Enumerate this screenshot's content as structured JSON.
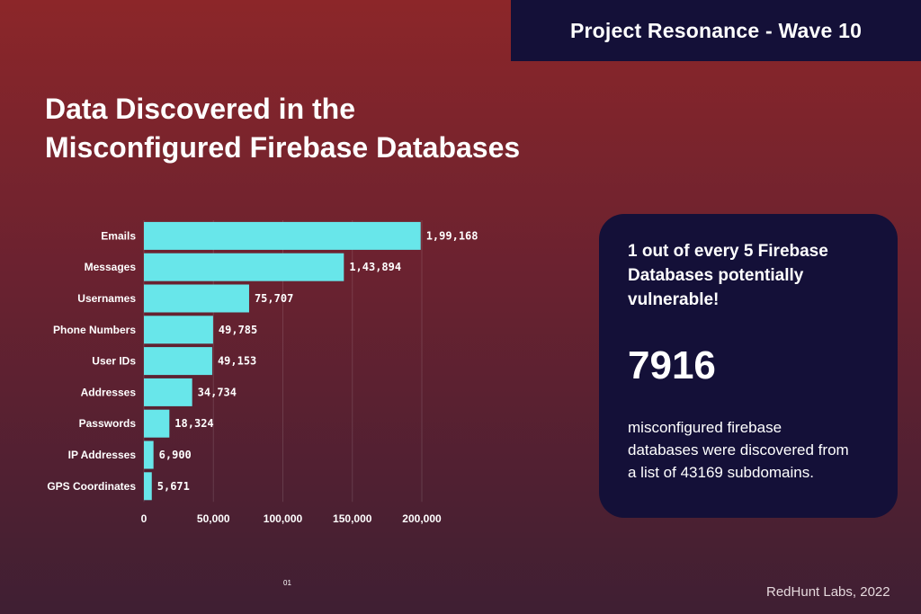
{
  "header": {
    "project_label": "Project Resonance - Wave 10"
  },
  "page": {
    "title_line1": "Data Discovered in the",
    "title_line2": "Misconfigured Firebase Databases",
    "page_number": "01",
    "credit": "RedHunt Labs, 2022"
  },
  "info_card": {
    "headline": "1 out of every 5 Firebase Databases potentially vulnerable!",
    "big_number": "7916",
    "description": "misconfigured firebase databases were discovered from a list of 43169 subdomains."
  },
  "colors": {
    "bar": "#68e6ea",
    "card_bg": "#141038",
    "background_top": "#8c2629",
    "background_bottom": "#3f1f33"
  },
  "chart_data": {
    "type": "bar",
    "orientation": "horizontal",
    "categories": [
      "Emails",
      "Messages",
      "Usernames",
      "Phone Numbers",
      "User IDs",
      "Addresses",
      "Passwords",
      "IP Addresses",
      "GPS Coordinates"
    ],
    "values": [
      199168,
      143894,
      75707,
      49785,
      49153,
      34734,
      18324,
      6900,
      5671
    ],
    "value_labels": [
      "1,99,168",
      "1,43,894",
      "75,707",
      "49,785",
      "49,153",
      "34,734",
      "18,324",
      "6,900",
      "5,671"
    ],
    "x_ticks": [
      0,
      50000,
      100000,
      150000,
      200000
    ],
    "x_tick_labels": [
      "0",
      "50,000",
      "100,000",
      "150,000",
      "200,000"
    ],
    "xlim": [
      0,
      200000
    ],
    "grid": true
  }
}
